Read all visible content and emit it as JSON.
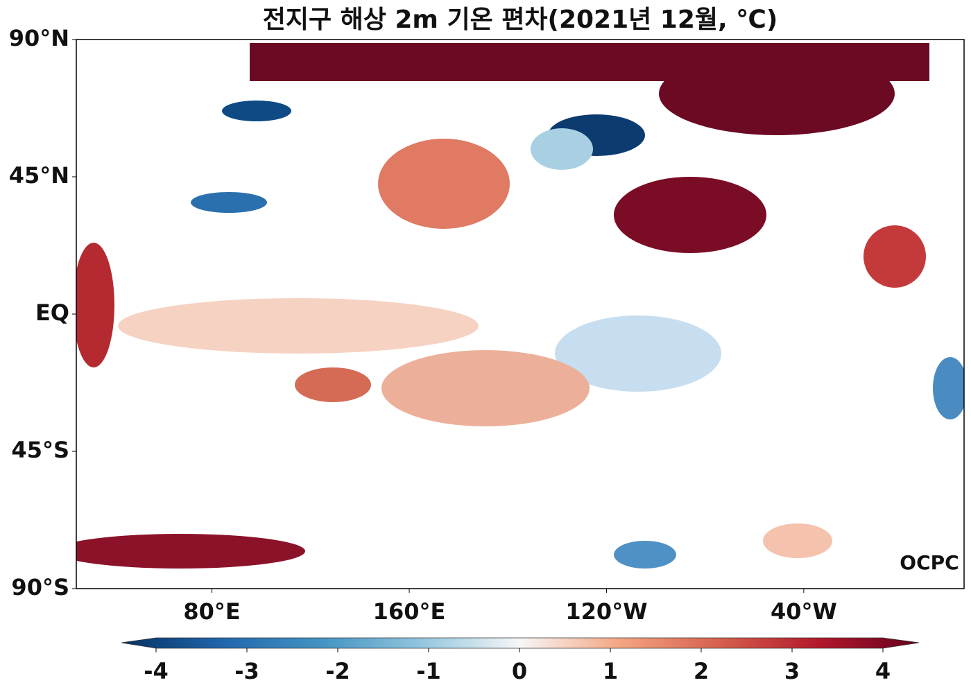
{
  "title": "전지구 해상 2m 기온 편차(2021년 12월, ℃)",
  "map": {
    "lonlim": [
      25,
      385
    ],
    "latlim": [
      -90,
      90
    ],
    "lat_ticks": [
      {
        "value": 90,
        "label": "90°N"
      },
      {
        "value": 45,
        "label": "45°N"
      },
      {
        "value": 0,
        "label": "EQ"
      },
      {
        "value": -45,
        "label": "45°S"
      },
      {
        "value": -90,
        "label": "90°S"
      }
    ],
    "lon_ticks": [
      {
        "value": 80,
        "label": "80°E"
      },
      {
        "value": 160,
        "label": "160°E"
      },
      {
        "value": 240,
        "label": "120°W"
      },
      {
        "value": 320,
        "label": "40°W"
      }
    ],
    "watermark": "OCPC"
  },
  "colorbar": {
    "lim": [
      -4,
      4
    ],
    "ticks": [
      -4,
      -3,
      -2,
      -1,
      0,
      1,
      2,
      3,
      4
    ],
    "colors": [
      "#053061",
      "#2166ac",
      "#4393c3",
      "#92c5de",
      "#f7f7f7",
      "#f4a582",
      "#d6604d",
      "#b2182b",
      "#67001f"
    ]
  }
}
